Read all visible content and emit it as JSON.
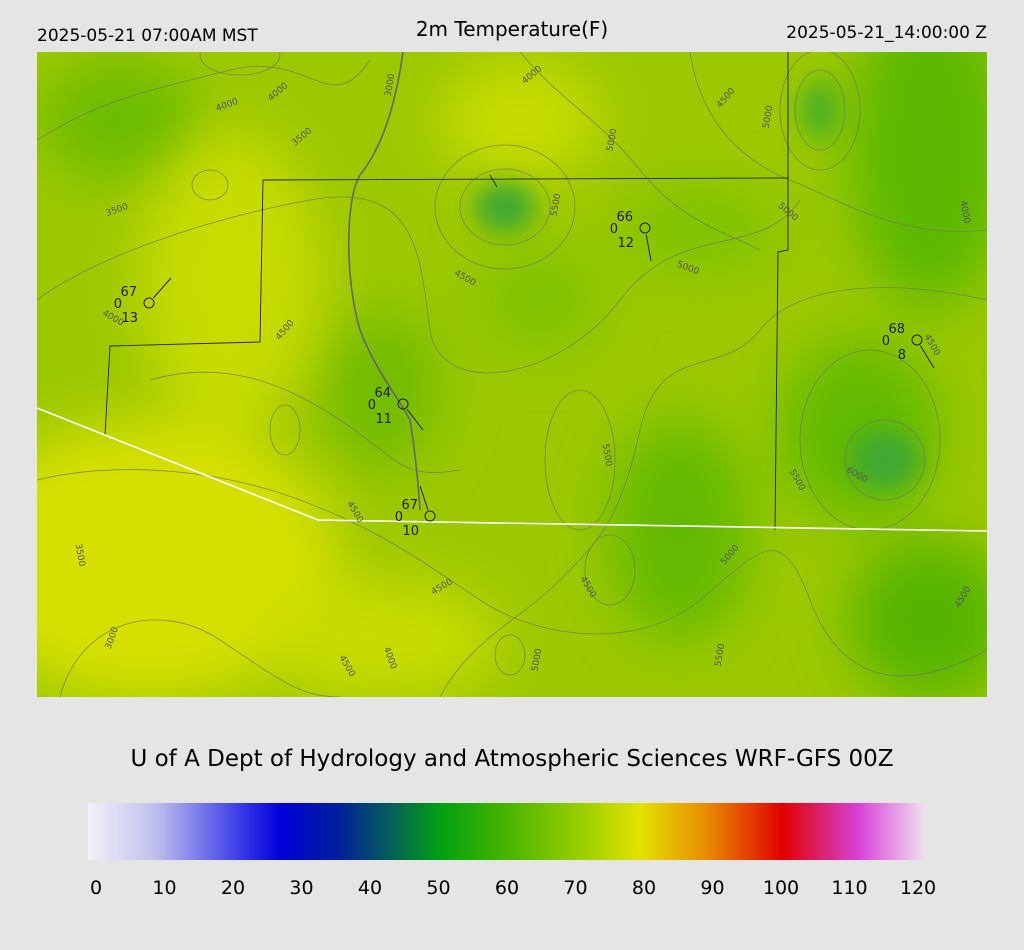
{
  "header": {
    "left": "2025-05-21 07:00AM MST",
    "title": "2m Temperature(F)",
    "right": "2025-05-21_14:00:00 Z"
  },
  "stations": [
    {
      "temp": "67",
      "left": "0",
      "bottom": "13"
    },
    {
      "temp": "66",
      "left": "0",
      "bottom": "12"
    },
    {
      "temp": "68",
      "left": "0",
      "bottom": "8"
    },
    {
      "temp": "64",
      "left": "0",
      "bottom": "11"
    },
    {
      "temp": "67",
      "left": "0",
      "bottom": "10"
    }
  ],
  "contour_labels": [
    "4000",
    "4000",
    "3000",
    "4000",
    "4500",
    "5000",
    "3500",
    "5000",
    "3500",
    "5500",
    "5000",
    "4000",
    "4500",
    "5000",
    "4000",
    "4500",
    "4500",
    "5500",
    "5500",
    "6000",
    "4500",
    "3500",
    "5000",
    "4500",
    "4500",
    "4500",
    "3000",
    "4000",
    "4500",
    "5000",
    "5500"
  ],
  "footer": "U of A Dept of Hydrology and Atmospheric Sciences WRF-GFS 00Z",
  "colorbar": {
    "ticks": [
      0,
      10,
      20,
      30,
      40,
      50,
      60,
      70,
      80,
      90,
      100,
      110,
      120
    ],
    "lim": [
      0,
      120
    ]
  }
}
